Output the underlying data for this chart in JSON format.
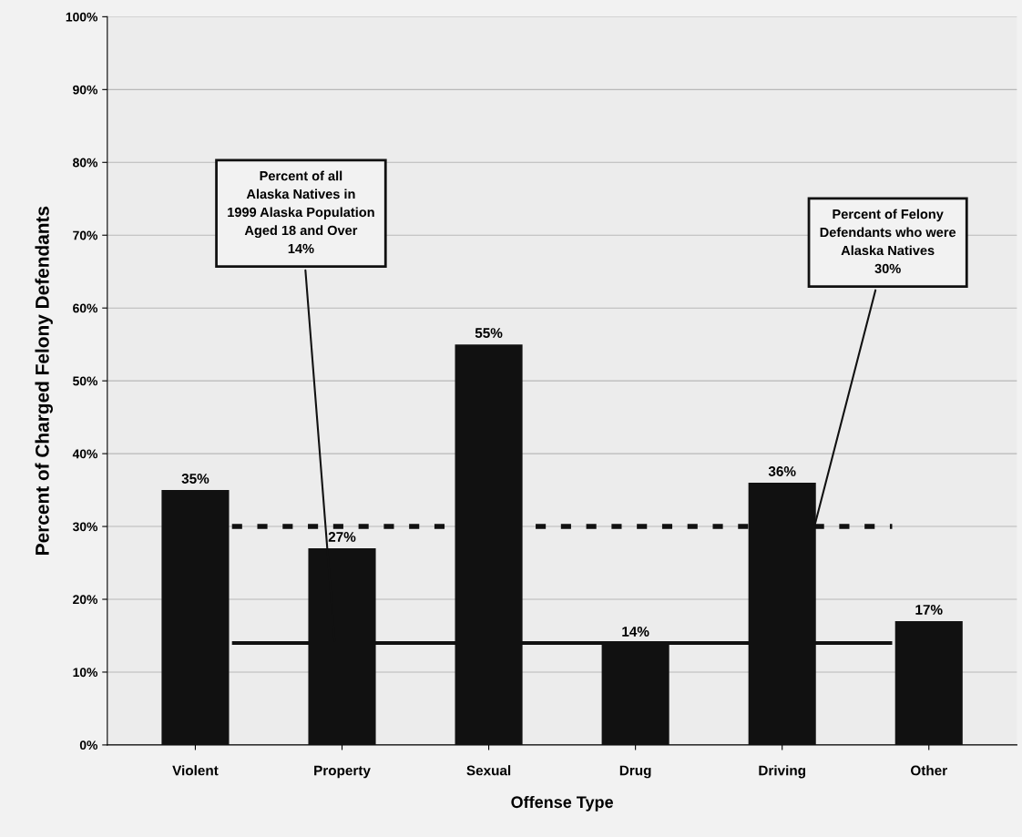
{
  "chart_data": {
    "type": "bar",
    "xlabel": "Offense Type",
    "ylabel": "Percent of Charged Felony Defendants",
    "categories": [
      "Violent",
      "Property",
      "Sexual",
      "Drug",
      "Driving",
      "Other"
    ],
    "values": [
      35,
      27,
      55,
      14,
      36,
      17
    ],
    "color": "#111111",
    "value_labels": [
      "35%",
      "27%",
      "55%",
      "14%",
      "36%",
      "17%"
    ],
    "ylim": [
      0,
      100
    ],
    "yticks": [
      {
        "value": 0,
        "label": "0%"
      },
      {
        "value": 10,
        "label": "10%"
      },
      {
        "value": 20,
        "label": "20%"
      },
      {
        "value": 30,
        "label": "30%"
      },
      {
        "value": 40,
        "label": "40%"
      },
      {
        "value": 50,
        "label": "50%"
      },
      {
        "value": 60,
        "label": "60%"
      },
      {
        "value": 70,
        "label": "70%"
      },
      {
        "value": 80,
        "label": "80%"
      },
      {
        "value": 90,
        "label": "90%"
      },
      {
        "value": 100,
        "label": "100%"
      }
    ],
    "ref_lines": [
      {
        "axis": "y",
        "value": 14,
        "label": "Percent of all\nAlaska Natives in\n1999 Alaska Population\nAged 18 and Over\n14%",
        "color": "#111111",
        "line_style": "solid"
      },
      {
        "axis": "y",
        "value": 30,
        "label": "Percent of Felony\nDefendants who were\nAlaska Natives\n30%",
        "color": "#111111",
        "line_style": "dashed"
      }
    ],
    "grid": "y"
  }
}
